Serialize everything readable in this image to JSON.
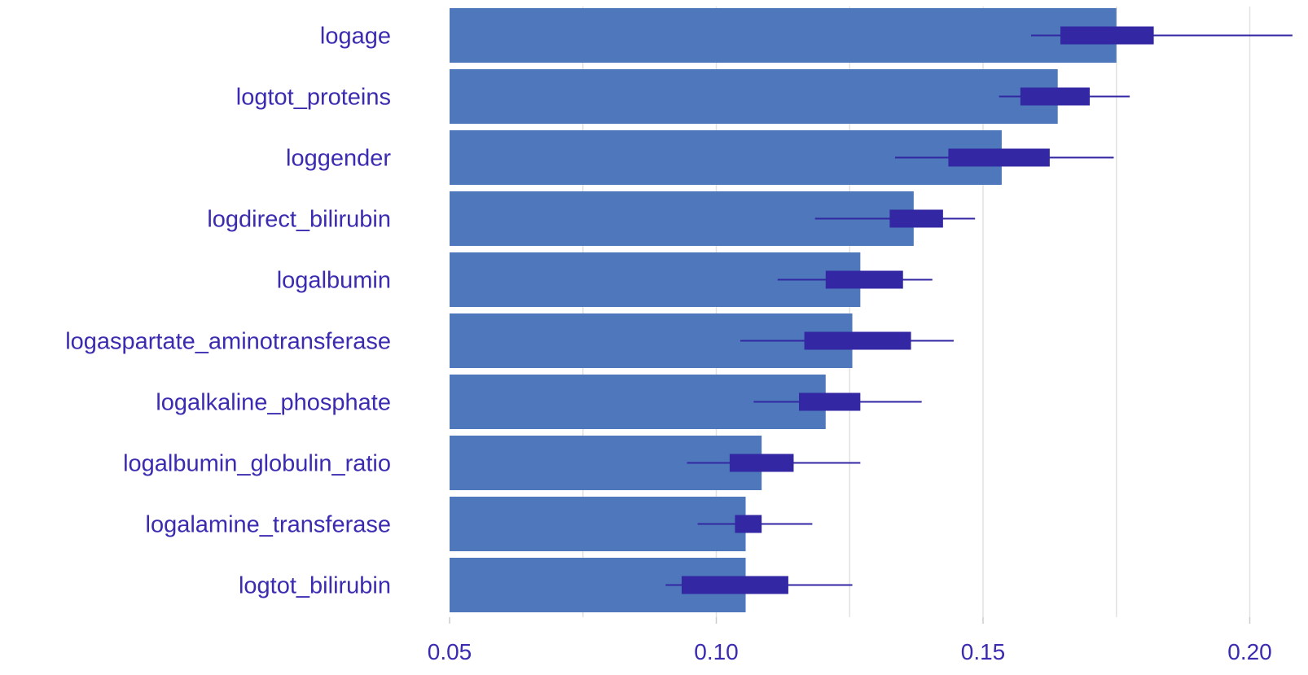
{
  "chart_data": {
    "type": "bar",
    "orientation": "horizontal",
    "title": "",
    "xlabel": "",
    "ylabel": "",
    "xlim": [
      0.05,
      0.21
    ],
    "xticks": [
      0.05,
      0.1,
      0.15,
      0.2
    ],
    "xtick_labels": [
      "0.05",
      "0.10",
      "0.15",
      "0.20"
    ],
    "grid": "vertical",
    "legend": "none",
    "categories": [
      "logage",
      "logtot_proteins",
      "loggender",
      "logdirect_bilirubin",
      "logalbumin",
      "logaspartate_aminotransferase",
      "logalkaline_phosphate",
      "logalbumin_globulin_ratio",
      "logalamine_transferase",
      "logtot_bilirubin"
    ],
    "values": [
      0.175,
      0.164,
      0.1535,
      0.137,
      0.127,
      0.1255,
      0.1205,
      0.1085,
      0.1055,
      0.1055
    ],
    "intervals_inner": [
      [
        0.1645,
        0.182
      ],
      [
        0.157,
        0.17
      ],
      [
        0.1435,
        0.1625
      ],
      [
        0.1325,
        0.1425
      ],
      [
        0.1205,
        0.135
      ],
      [
        0.1165,
        0.1365
      ],
      [
        0.1155,
        0.127
      ],
      [
        0.1025,
        0.1145
      ],
      [
        0.1035,
        0.1085
      ],
      [
        0.0935,
        0.1135
      ]
    ],
    "intervals_outer": [
      [
        0.159,
        0.208
      ],
      [
        0.153,
        0.1775
      ],
      [
        0.1335,
        0.1745
      ],
      [
        0.1185,
        0.1485
      ],
      [
        0.1115,
        0.1405
      ],
      [
        0.1045,
        0.1445
      ],
      [
        0.107,
        0.1385
      ],
      [
        0.0945,
        0.127
      ],
      [
        0.0965,
        0.118
      ],
      [
        0.0905,
        0.1255
      ]
    ],
    "colors": {
      "bar": "#4e78bb",
      "interval": "#3327a3",
      "label": "#3a2bb0",
      "grid": "#e2e2e2"
    }
  }
}
